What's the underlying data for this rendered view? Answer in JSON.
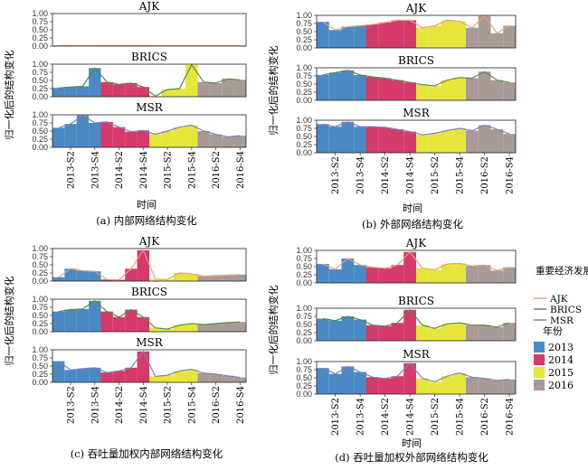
{
  "legend": {
    "region_title": "重要经济发展区域",
    "region_items": [
      {
        "label": "AJK",
        "color": "#e8a07a"
      },
      {
        "label": "BRICS",
        "color": "#5a8a4a"
      },
      {
        "label": "MSR",
        "color": "#7f7fbf"
      }
    ],
    "year_title": "年份",
    "year_items": [
      {
        "label": "2013",
        "color": "#4a8ac4"
      },
      {
        "label": "2014",
        "color": "#d63a6a"
      },
      {
        "label": "2015",
        "color": "#e6e63a"
      },
      {
        "label": "2016",
        "color": "#a89a94"
      }
    ]
  },
  "chart_data": [
    {
      "type": "bar",
      "caption": "(a) 内部网络结构变化",
      "ylabel": "归一化后的结构变化",
      "xlabel": "时间",
      "ylim": [
        0,
        1
      ],
      "y_ticks": [
        "0.00",
        "0.25",
        "0.50",
        "0.75",
        "1.00"
      ],
      "categories": [
        "2013-S1",
        "2013-S2",
        "2013-S3",
        "2013-S4",
        "2014-S1",
        "2014-S2",
        "2014-S3",
        "2014-S4",
        "2015-S1",
        "2015-S2",
        "2015-S3",
        "2015-S4",
        "2016-S1",
        "2016-S2",
        "2016-S3",
        "2016-S4"
      ],
      "x_tick_labels": [
        "2013-S2",
        "2013-S4",
        "2014-S2",
        "2014-S4",
        "2015-S2",
        "2015-S4",
        "2016-S2",
        "2016-S4"
      ],
      "series": [
        {
          "name": "AJK",
          "values": [
            0.02,
            0.02,
            0.02,
            0.02,
            0.02,
            0.02,
            0.02,
            0.02,
            0.02,
            0.02,
            0.02,
            0.02,
            0.02,
            0.02,
            0.02,
            0.02
          ]
        },
        {
          "name": "BRICS",
          "values": [
            0.27,
            0.3,
            0.32,
            0.88,
            0.45,
            0.38,
            0.42,
            0.3,
            0.02,
            0.22,
            0.25,
            0.98,
            0.45,
            0.42,
            0.55,
            0.52
          ]
        },
        {
          "name": "MSR",
          "values": [
            0.6,
            0.72,
            0.98,
            0.75,
            0.78,
            0.62,
            0.48,
            0.52,
            0.4,
            0.5,
            0.62,
            0.68,
            0.5,
            0.4,
            0.32,
            0.36
          ]
        }
      ]
    },
    {
      "type": "bar",
      "caption": "(b) 外部网络结构变化",
      "ylabel": "归一化后的结构变化",
      "xlabel": "时间",
      "ylim": [
        0,
        1
      ],
      "y_ticks": [
        "0.00",
        "0.25",
        "0.50",
        "0.75",
        "1.00"
      ],
      "categories": [
        "2013-S1",
        "2013-S2",
        "2013-S3",
        "2013-S4",
        "2014-S1",
        "2014-S2",
        "2014-S3",
        "2014-S4",
        "2015-S1",
        "2015-S2",
        "2015-S3",
        "2015-S4",
        "2016-S1",
        "2016-S2",
        "2016-S3",
        "2016-S4"
      ],
      "x_tick_labels": [
        "2013-S2",
        "2013-S4",
        "2014-S2",
        "2014-S4",
        "2015-S2",
        "2015-S4",
        "2016-S2",
        "2016-S4"
      ],
      "series": [
        {
          "name": "AJK",
          "values": [
            0.8,
            0.55,
            0.65,
            0.68,
            0.72,
            0.78,
            0.85,
            0.85,
            0.62,
            0.68,
            0.85,
            0.82,
            0.62,
            0.98,
            0.45,
            0.68
          ]
        },
        {
          "name": "BRICS",
          "values": [
            0.78,
            0.85,
            0.92,
            0.78,
            0.72,
            0.68,
            0.62,
            0.55,
            0.48,
            0.45,
            0.62,
            0.7,
            0.68,
            0.88,
            0.62,
            0.55
          ]
        },
        {
          "name": "MSR",
          "values": [
            0.88,
            0.8,
            0.95,
            0.8,
            0.8,
            0.78,
            0.72,
            0.65,
            0.55,
            0.6,
            0.68,
            0.75,
            0.68,
            0.85,
            0.72,
            0.58
          ]
        }
      ]
    },
    {
      "type": "bar",
      "caption": "(c) 吞吐量加权内部网络结构变化",
      "ylabel": "归一化后的结构变化",
      "xlabel": "",
      "ylim": [
        0,
        1
      ],
      "y_ticks": [
        "0.00",
        "0.25",
        "0.50",
        "0.75",
        "1.00"
      ],
      "categories": [
        "2013-S1",
        "2013-S2",
        "2013-S3",
        "2013-S4",
        "2014-S1",
        "2014-S2",
        "2014-S3",
        "2014-S4",
        "2015-S1",
        "2015-S2",
        "2015-S3",
        "2015-S4",
        "2016-S1",
        "2016-S2",
        "2016-S3",
        "2016-S4"
      ],
      "x_tick_labels": [
        "2013-S2",
        "2013-S4",
        "2014-S2",
        "2014-S4",
        "2015-S2",
        "2015-S4",
        "2016-S2",
        "2016-S4"
      ],
      "series": [
        {
          "name": "AJK",
          "values": [
            0.12,
            0.38,
            0.32,
            0.3,
            0.05,
            0.04,
            0.38,
            0.95,
            0.06,
            0.05,
            0.25,
            0.22,
            0.15,
            0.17,
            0.18,
            0.2
          ]
        },
        {
          "name": "BRICS",
          "values": [
            0.62,
            0.68,
            0.7,
            0.95,
            0.62,
            0.45,
            0.68,
            0.45,
            0.12,
            0.08,
            0.2,
            0.25,
            0.22,
            0.25,
            0.28,
            0.3
          ]
        },
        {
          "name": "MSR",
          "values": [
            0.65,
            0.38,
            0.42,
            0.45,
            0.3,
            0.35,
            0.45,
            0.95,
            0.18,
            0.22,
            0.35,
            0.4,
            0.28,
            0.25,
            0.2,
            0.15
          ]
        }
      ]
    },
    {
      "type": "bar",
      "caption": "(d) 吞吐量加权外部网络结构变化",
      "ylabel": "归一化后的结构变化",
      "xlabel": "时间",
      "ylim": [
        0,
        1
      ],
      "y_ticks": [
        "0.00",
        "0.25",
        "0.50",
        "0.75",
        "1.00"
      ],
      "categories": [
        "2013-S1",
        "2013-S2",
        "2013-S3",
        "2013-S4",
        "2014-S1",
        "2014-S2",
        "2014-S3",
        "2014-S4",
        "2015-S1",
        "2015-S2",
        "2015-S3",
        "2015-S4",
        "2016-S1",
        "2016-S2",
        "2016-S3",
        "2016-S4"
      ],
      "x_tick_labels": [
        "2013-S2",
        "2013-S4",
        "2014-S2",
        "2014-S4",
        "2015-S2",
        "2015-S4",
        "2016-S2",
        "2016-S4"
      ],
      "series": [
        {
          "name": "AJK",
          "values": [
            0.58,
            0.42,
            0.75,
            0.55,
            0.48,
            0.45,
            0.55,
            0.95,
            0.45,
            0.4,
            0.58,
            0.6,
            0.52,
            0.55,
            0.38,
            0.48
          ]
        },
        {
          "name": "BRICS",
          "values": [
            0.68,
            0.62,
            0.75,
            0.65,
            0.48,
            0.45,
            0.55,
            0.95,
            0.48,
            0.38,
            0.52,
            0.55,
            0.48,
            0.48,
            0.42,
            0.55
          ]
        },
        {
          "name": "MSR",
          "values": [
            0.8,
            0.62,
            0.85,
            0.68,
            0.52,
            0.48,
            0.55,
            0.95,
            0.48,
            0.38,
            0.55,
            0.65,
            0.52,
            0.48,
            0.42,
            0.45
          ]
        }
      ]
    }
  ]
}
